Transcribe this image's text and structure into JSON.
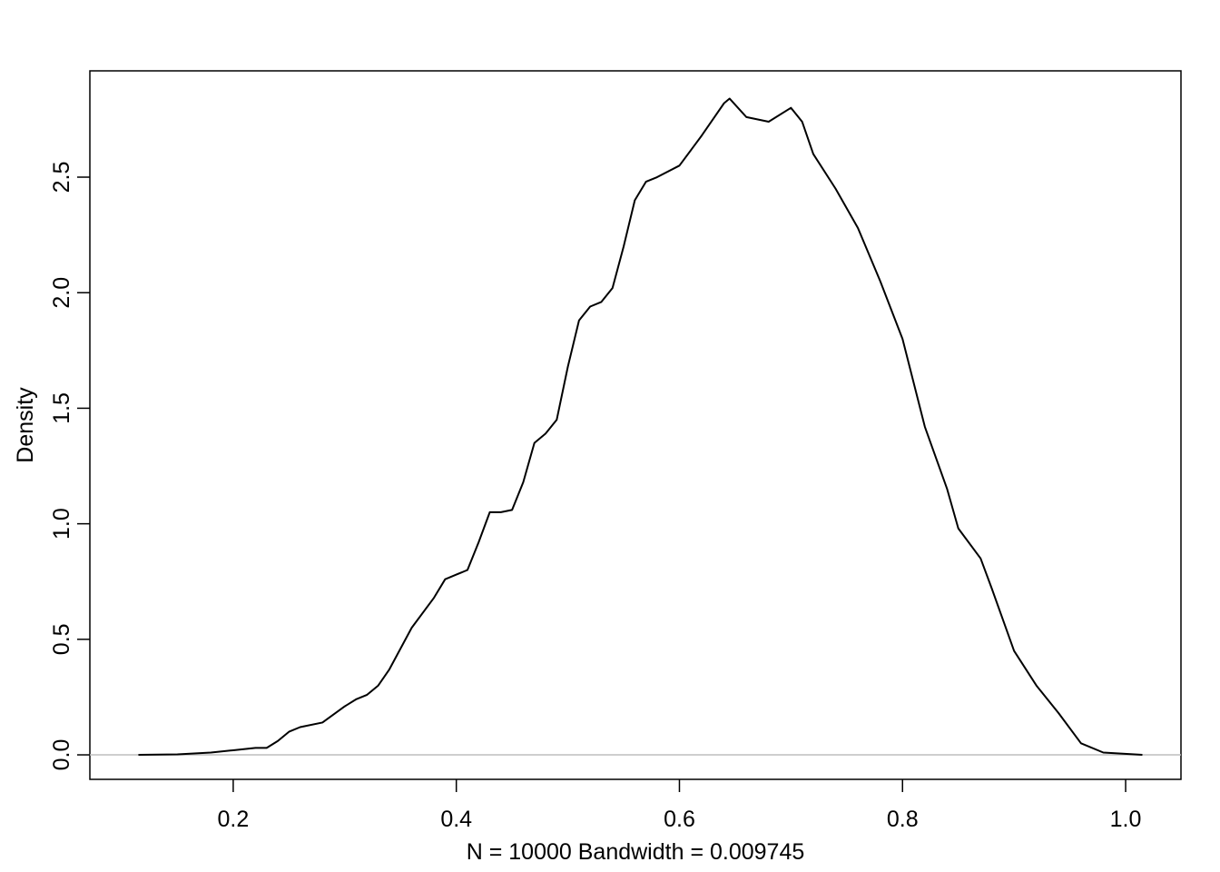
{
  "chart_data": {
    "type": "line",
    "xlabel": "N = 10000   Bandwidth = 0.009745",
    "ylabel": "Density",
    "x": [
      0.115,
      0.15,
      0.18,
      0.2,
      0.22,
      0.23,
      0.24,
      0.25,
      0.26,
      0.28,
      0.3,
      0.31,
      0.32,
      0.33,
      0.34,
      0.36,
      0.38,
      0.39,
      0.4,
      0.41,
      0.42,
      0.43,
      0.44,
      0.45,
      0.46,
      0.47,
      0.48,
      0.49,
      0.5,
      0.51,
      0.52,
      0.53,
      0.54,
      0.55,
      0.56,
      0.57,
      0.58,
      0.6,
      0.62,
      0.64,
      0.645,
      0.66,
      0.68,
      0.7,
      0.71,
      0.72,
      0.74,
      0.76,
      0.78,
      0.8,
      0.82,
      0.84,
      0.85,
      0.87,
      0.88,
      0.9,
      0.92,
      0.94,
      0.96,
      0.98,
      1.015
    ],
    "series": [
      {
        "name": "density",
        "color": "#000000",
        "values": [
          0,
          0.002,
          0.01,
          0.02,
          0.03,
          0.03,
          0.06,
          0.1,
          0.12,
          0.14,
          0.21,
          0.24,
          0.26,
          0.3,
          0.37,
          0.55,
          0.68,
          0.76,
          0.78,
          0.8,
          0.92,
          1.05,
          1.05,
          1.06,
          1.18,
          1.35,
          1.39,
          1.45,
          1.68,
          1.88,
          1.94,
          1.96,
          2.02,
          2.2,
          2.4,
          2.48,
          2.5,
          2.55,
          2.68,
          2.82,
          2.84,
          2.76,
          2.74,
          2.8,
          2.74,
          2.6,
          2.45,
          2.28,
          2.05,
          1.8,
          1.42,
          1.15,
          0.98,
          0.85,
          0.72,
          0.45,
          0.3,
          0.18,
          0.05,
          0.01,
          0
        ]
      }
    ],
    "xlim": [
      0.0715,
      1.0496
    ],
    "ylim": [
      -0.106,
      2.96
    ],
    "xticks": [
      0.2,
      0.4,
      0.6,
      0.8,
      {
        "value": 1,
        "label": "1.0"
      }
    ],
    "yticks": [
      {
        "value": 0,
        "label": "0.0"
      },
      0.5,
      {
        "value": 1,
        "label": "1.0"
      },
      1.5,
      {
        "value": 2,
        "label": "2.0"
      },
      2.5
    ],
    "zero_line": true,
    "zero_line_color": "#bebebe"
  }
}
